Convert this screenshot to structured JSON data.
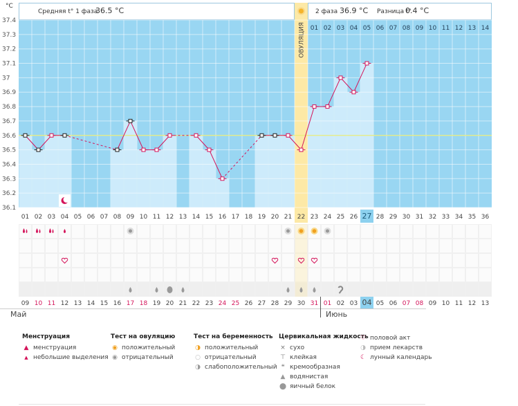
{
  "chart_data": {
    "type": "bar",
    "unit_label": "°C",
    "header": {
      "phase1_label": "Средняя t° 1 фаза",
      "phase1_value": "36.5 °C",
      "phase2_label": "2 фаза",
      "phase2_value": "36.9 °C",
      "diff_label": "Разница t°",
      "diff_value": "0.4 °C"
    },
    "ylim": [
      36.1,
      37.4
    ],
    "y_ticks": [
      "37.4",
      "37.3",
      "37.2",
      "37.1",
      "37",
      "36.9",
      "36.8",
      "36.7",
      "36.6",
      "36.5",
      "36.4",
      "36.3",
      "36.2",
      "36.1"
    ],
    "coverline": 36.6,
    "ovulation_label": "ОВУЛЯЦИЯ",
    "ovulation_day_index": 21,
    "today_index": 26,
    "cycle_days": [
      "01",
      "02",
      "03",
      "04",
      "05",
      "06",
      "07",
      "08",
      "09",
      "10",
      "11",
      "12",
      "13",
      "14",
      "15",
      "16",
      "17",
      "18",
      "19",
      "20",
      "21",
      "22",
      "23",
      "24",
      "25",
      "26",
      "27",
      "28",
      "29",
      "30",
      "31",
      "32",
      "33",
      "34",
      "35",
      "36"
    ],
    "temps": [
      36.6,
      36.5,
      36.6,
      36.6,
      null,
      null,
      null,
      36.5,
      36.7,
      36.5,
      36.5,
      36.6,
      null,
      36.6,
      36.5,
      36.3,
      null,
      null,
      36.6,
      36.6,
      36.6,
      36.5,
      36.8,
      36.8,
      37.0,
      36.9,
      37.1,
      null,
      null,
      null,
      null,
      null,
      null,
      null,
      null,
      null
    ],
    "marker_style": [
      "black",
      "black",
      "red",
      "black",
      null,
      null,
      null,
      "black",
      "black",
      "red",
      "red",
      "red",
      null,
      "red",
      "red",
      "red",
      null,
      null,
      "black",
      "black",
      "red",
      "red",
      "red",
      "red",
      "red",
      "red",
      "red",
      null,
      null,
      null,
      null,
      null,
      null,
      null,
      null,
      null
    ],
    "phase2_days": [
      "01",
      "02",
      "03",
      "04",
      "05",
      "06",
      "07",
      "08",
      "09",
      "10",
      "11",
      "12",
      "13",
      "14"
    ],
    "menstruation": [
      "heavy",
      "heavy",
      "heavy",
      "light"
    ],
    "ovulation_tests": {
      "positive": [
        21,
        22
      ],
      "negative": [
        8,
        20,
        23
      ]
    },
    "sex_days": [
      3,
      19,
      21,
      22
    ],
    "fluid": {
      "watery": [
        8,
        10,
        12,
        20,
        21,
        22
      ],
      "eggwhite": [
        11
      ],
      "creamy": [
        24
      ]
    },
    "moon_day_index": 3,
    "dates": [
      "09",
      "10",
      "11",
      "12",
      "13",
      "14",
      "15",
      "16",
      "17",
      "18",
      "19",
      "20",
      "21",
      "22",
      "23",
      "24",
      "25",
      "26",
      "27",
      "28",
      "29",
      "30",
      "31",
      "01",
      "02",
      "03",
      "04",
      "05",
      "06",
      "07",
      "08",
      "09",
      "10",
      "11",
      "12",
      "13"
    ],
    "red_date_indices": [
      1,
      2,
      8,
      9,
      15,
      16,
      22,
      23,
      29,
      30
    ],
    "today_date_index": 26,
    "month_may": "Май",
    "month_june": "Июнь",
    "colors": {
      "blue": "#99d6f2",
      "bar": "#cdebfb",
      "grid": "#ffffff",
      "line": "#d4145a",
      "coverline": "#e8ec7a",
      "ovulation": "#fde9a6",
      "today": "#8dd1ef",
      "red": "#d4145a"
    }
  },
  "legend": {
    "menstruation": {
      "title": "Менструация",
      "items": [
        "менструация",
        "небольшие выделения"
      ]
    },
    "ovulation_test": {
      "title": "Тест на овуляцию",
      "items": [
        "положительный",
        "отрицательный"
      ]
    },
    "pregnancy_test": {
      "title": "Тест на беременность",
      "items": [
        "положительный",
        "отрицательный",
        "слабоположительный"
      ]
    },
    "cervical": {
      "title": "Цервикальная жидкость",
      "items": [
        "сухо",
        "клейкая",
        "кремообразная",
        "водянистая",
        "яичный белок"
      ]
    },
    "other": {
      "items": [
        "половой акт",
        "прием лекарств",
        "лунный календарь"
      ]
    }
  }
}
